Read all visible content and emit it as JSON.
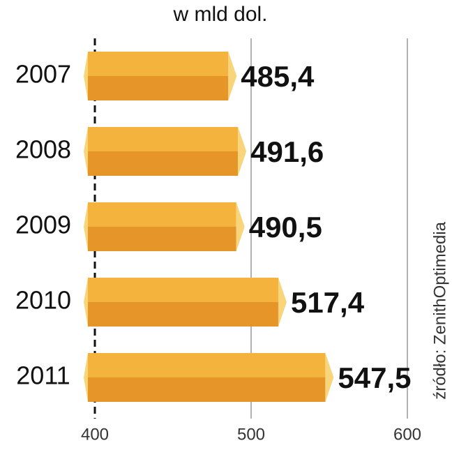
{
  "chart_data": {
    "type": "bar",
    "orientation": "horizontal",
    "title": "w mld dol.",
    "source": "źródło: ZenithOptimedia",
    "categories": [
      "2007",
      "2008",
      "2009",
      "2010",
      "2011"
    ],
    "values": [
      485.4,
      491.6,
      490.5,
      517.4,
      547.5
    ],
    "value_labels": [
      "485,4",
      "491,6",
      "490,5",
      "517,4",
      "547,5"
    ],
    "color": "#f3b33d",
    "xlim": [
      400,
      600
    ],
    "xticks": [
      400,
      500,
      600
    ],
    "grid": true
  }
}
